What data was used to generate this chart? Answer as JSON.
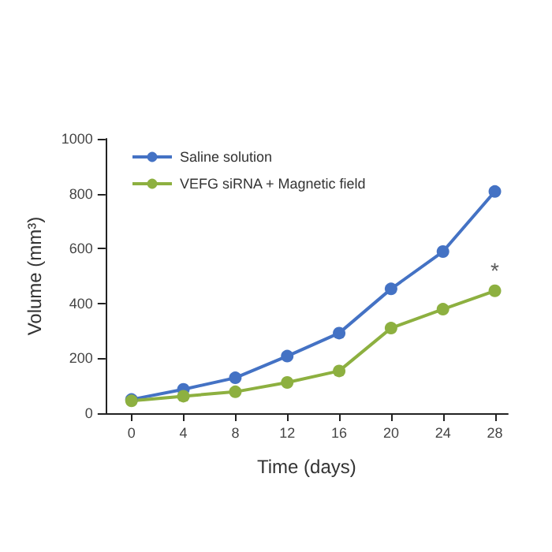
{
  "chart_data": {
    "type": "line",
    "xlabel": "Time (days)",
    "ylabel": "Volume (mm³)",
    "x": [
      0,
      4,
      8,
      12,
      16,
      20,
      24,
      28
    ],
    "series": [
      {
        "name": "Saline solution",
        "color": "#4472c4",
        "values": [
          50,
          87,
          129,
          208,
          292,
          453,
          589,
          808
        ]
      },
      {
        "name": "VEFG siRNA + Magnetic field",
        "color": "#8db040",
        "values": [
          45,
          62,
          78,
          112,
          154,
          310,
          379,
          446
        ]
      }
    ],
    "xlim": [
      -2,
      29
    ],
    "xticks": [
      0,
      4,
      8,
      12,
      16,
      20,
      24,
      28
    ],
    "ylim": [
      0,
      1000
    ],
    "yticks": [
      0,
      200,
      400,
      600,
      800,
      1000
    ],
    "annotations": [
      {
        "text": "*",
        "x": 28,
        "y": 446
      }
    ],
    "grid": false,
    "legend": "top left",
    "marker": "circle",
    "line_style": "solid"
  }
}
